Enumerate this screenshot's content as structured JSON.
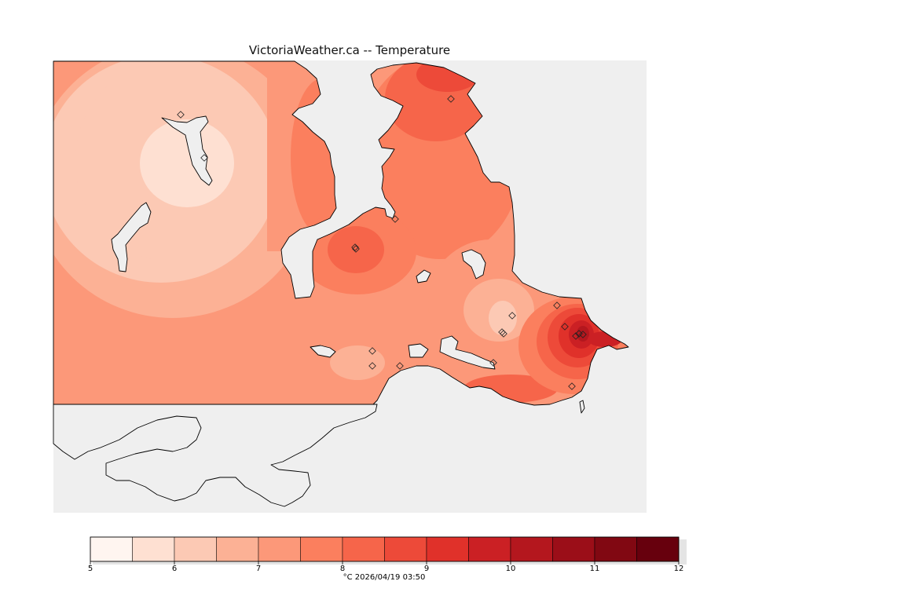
{
  "title": "VictoriaWeather.ca -- Temperature",
  "colors": {
    "ocean": "#efefef",
    "background": "#ffffff",
    "scale": [
      "#fff5f0",
      "#fee0d2",
      "#fcc9b4",
      "#fcb195",
      "#fc9879",
      "#fb7f5e",
      "#f6654a",
      "#ed4a39",
      "#e0312a",
      "#cb2024",
      "#b4171e",
      "#9b0e18",
      "#810812",
      "#67000d"
    ]
  },
  "legend": {
    "ticks": [
      "5",
      "6",
      "7",
      "8",
      "9",
      "10",
      "11",
      "12"
    ],
    "label": "°C  2026/04/19 03:50",
    "min": 5,
    "max": 12,
    "step": 0.5
  },
  "map": {
    "feature_icons": [
      "station-marker-icon"
    ],
    "station_count": 19
  }
}
